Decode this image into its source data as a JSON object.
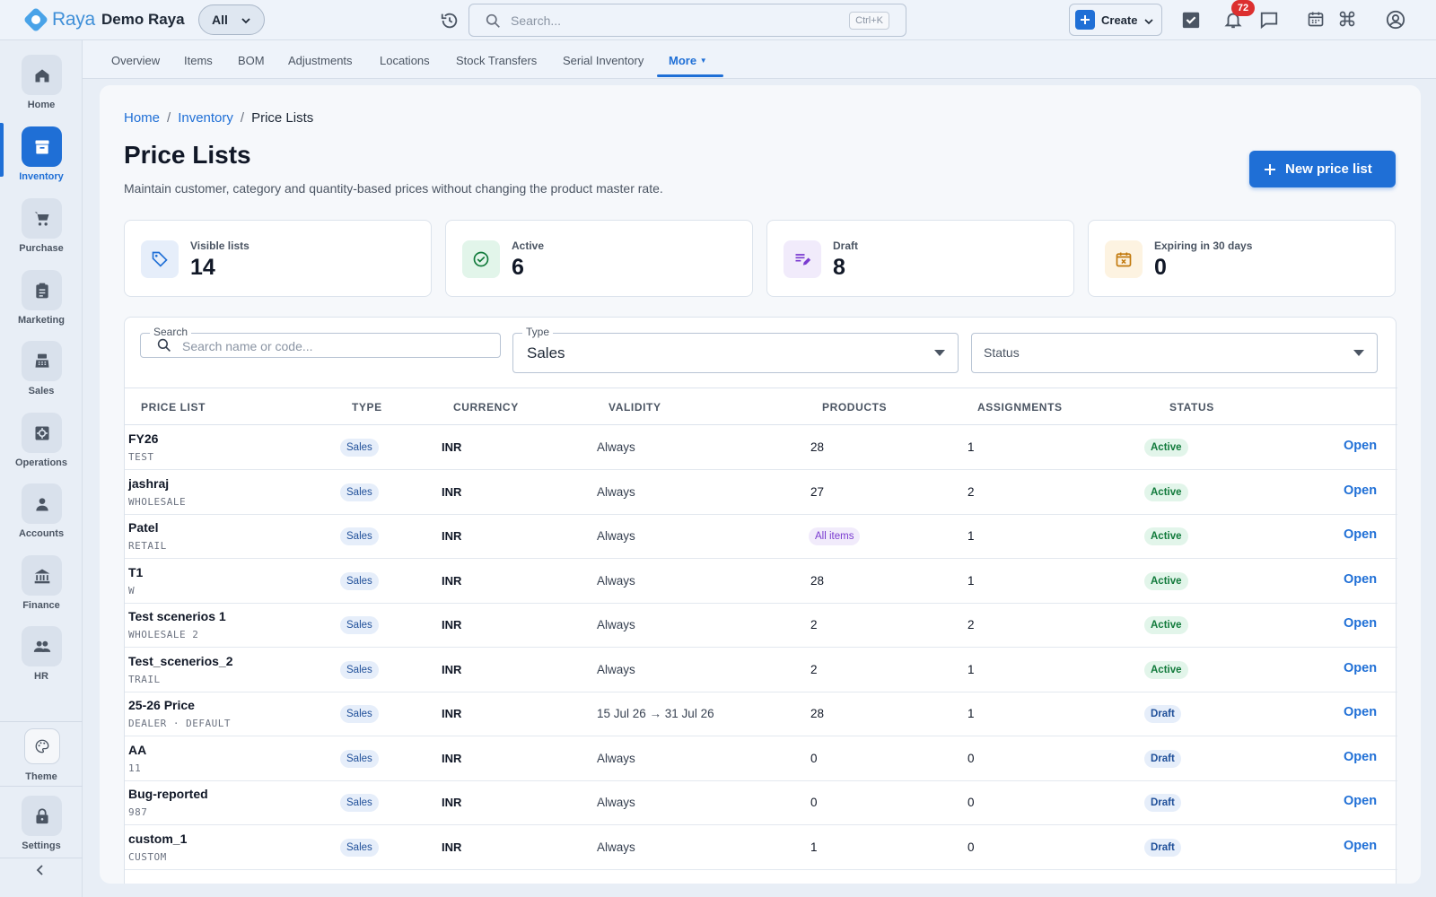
{
  "app": {
    "logo_text": "Raya",
    "org_name": "Demo Raya",
    "scope": "All"
  },
  "topbar": {
    "search_placeholder": "Search...",
    "search_shortcut": "Ctrl+K",
    "create_label": "Create",
    "notification_count": "72",
    "accent_color": "#1f6fd6",
    "icons": [
      "history-icon",
      "search-icon",
      "tasks-check-icon",
      "bell-icon",
      "chat-icon",
      "calendar-icon",
      "command-icon",
      "account-icon"
    ]
  },
  "sidebar": {
    "items": [
      {
        "label": "Home",
        "icon": "home-icon"
      },
      {
        "label": "Inventory",
        "icon": "inventory-box-icon",
        "active": true
      },
      {
        "label": "Purchase",
        "icon": "cart-icon"
      },
      {
        "label": "Marketing",
        "icon": "clipboard-icon"
      },
      {
        "label": "Sales",
        "icon": "register-icon"
      },
      {
        "label": "Operations",
        "icon": "operations-gear-icon"
      },
      {
        "label": "Accounts",
        "icon": "person-icon"
      },
      {
        "label": "Finance",
        "icon": "bank-icon"
      },
      {
        "label": "HR",
        "icon": "people-icon"
      }
    ],
    "bottom": [
      {
        "label": "Theme",
        "icon": "palette-icon"
      },
      {
        "label": "Settings",
        "icon": "lock-icon"
      }
    ]
  },
  "tabs": {
    "items": [
      "Overview",
      "Items",
      "BOM",
      "Adjustments",
      "Locations",
      "Stock Transfers",
      "Serial Inventory"
    ],
    "more_label": "More"
  },
  "breadcrumb": {
    "home": "Home",
    "section": "Inventory",
    "current": "Price Lists",
    "sep": "/"
  },
  "page": {
    "title": "Price Lists",
    "subtitle": "Maintain customer, category and quantity-based prices without changing the product master rate.",
    "new_button": "New price list"
  },
  "stats": [
    {
      "label": "Visible lists",
      "value": "14",
      "icon": "tag-icon"
    },
    {
      "label": "Active",
      "value": "6",
      "icon": "check-circle-icon"
    },
    {
      "label": "Draft",
      "value": "8",
      "icon": "draft-edit-icon"
    },
    {
      "label": "Expiring in 30 days",
      "value": "0",
      "icon": "calendar-x-icon"
    }
  ],
  "filters": {
    "search_label": "Search",
    "search_placeholder": "Search name or code...",
    "type_label": "Type",
    "type_value": "Sales",
    "status_placeholder": "Status"
  },
  "table": {
    "headers": [
      "PRICE LIST",
      "TYPE",
      "CURRENCY",
      "VALIDITY",
      "PRODUCTS",
      "ASSIGNMENTS",
      "STATUS"
    ],
    "open_label": "Open",
    "rows": [
      {
        "name": "FY26",
        "code": "TEST",
        "type": "Sales",
        "currency": "INR",
        "validity": "Always",
        "products": "28",
        "assignments": "1",
        "status": "Active"
      },
      {
        "name": "jashraj",
        "code": "WHOLESALE",
        "type": "Sales",
        "currency": "INR",
        "validity": "Always",
        "products": "27",
        "assignments": "2",
        "status": "Active"
      },
      {
        "name": "Patel",
        "code": "RETAIL",
        "type": "Sales",
        "currency": "INR",
        "validity": "Always",
        "products": "All items",
        "assignments": "1",
        "status": "Active"
      },
      {
        "name": "T1",
        "code": "W",
        "type": "Sales",
        "currency": "INR",
        "validity": "Always",
        "products": "28",
        "assignments": "1",
        "status": "Active"
      },
      {
        "name": "Test scenerios 1",
        "code": "WHOLESALE 2",
        "type": "Sales",
        "currency": "INR",
        "validity": "Always",
        "products": "2",
        "assignments": "2",
        "status": "Active"
      },
      {
        "name": "Test_scenerios_2",
        "code": "TRAIL",
        "type": "Sales",
        "currency": "INR",
        "validity": "Always",
        "products": "2",
        "assignments": "1",
        "status": "Active"
      },
      {
        "name": "25-26 Price",
        "code": "DEALER · DEFAULT",
        "type": "Sales",
        "currency": "INR",
        "validity": "15 Jul 26 → 31 Jul 26",
        "products": "28",
        "assignments": "1",
        "status": "Draft"
      },
      {
        "name": "AA",
        "code": "11",
        "type": "Sales",
        "currency": "INR",
        "validity": "Always",
        "products": "0",
        "assignments": "0",
        "status": "Draft"
      },
      {
        "name": "Bug-reported",
        "code": "987",
        "type": "Sales",
        "currency": "INR",
        "validity": "Always",
        "products": "0",
        "assignments": "0",
        "status": "Draft"
      },
      {
        "name": "custom_1",
        "code": "CUSTOM",
        "type": "Sales",
        "currency": "INR",
        "validity": "Always",
        "products": "1",
        "assignments": "0",
        "status": "Draft"
      }
    ]
  }
}
